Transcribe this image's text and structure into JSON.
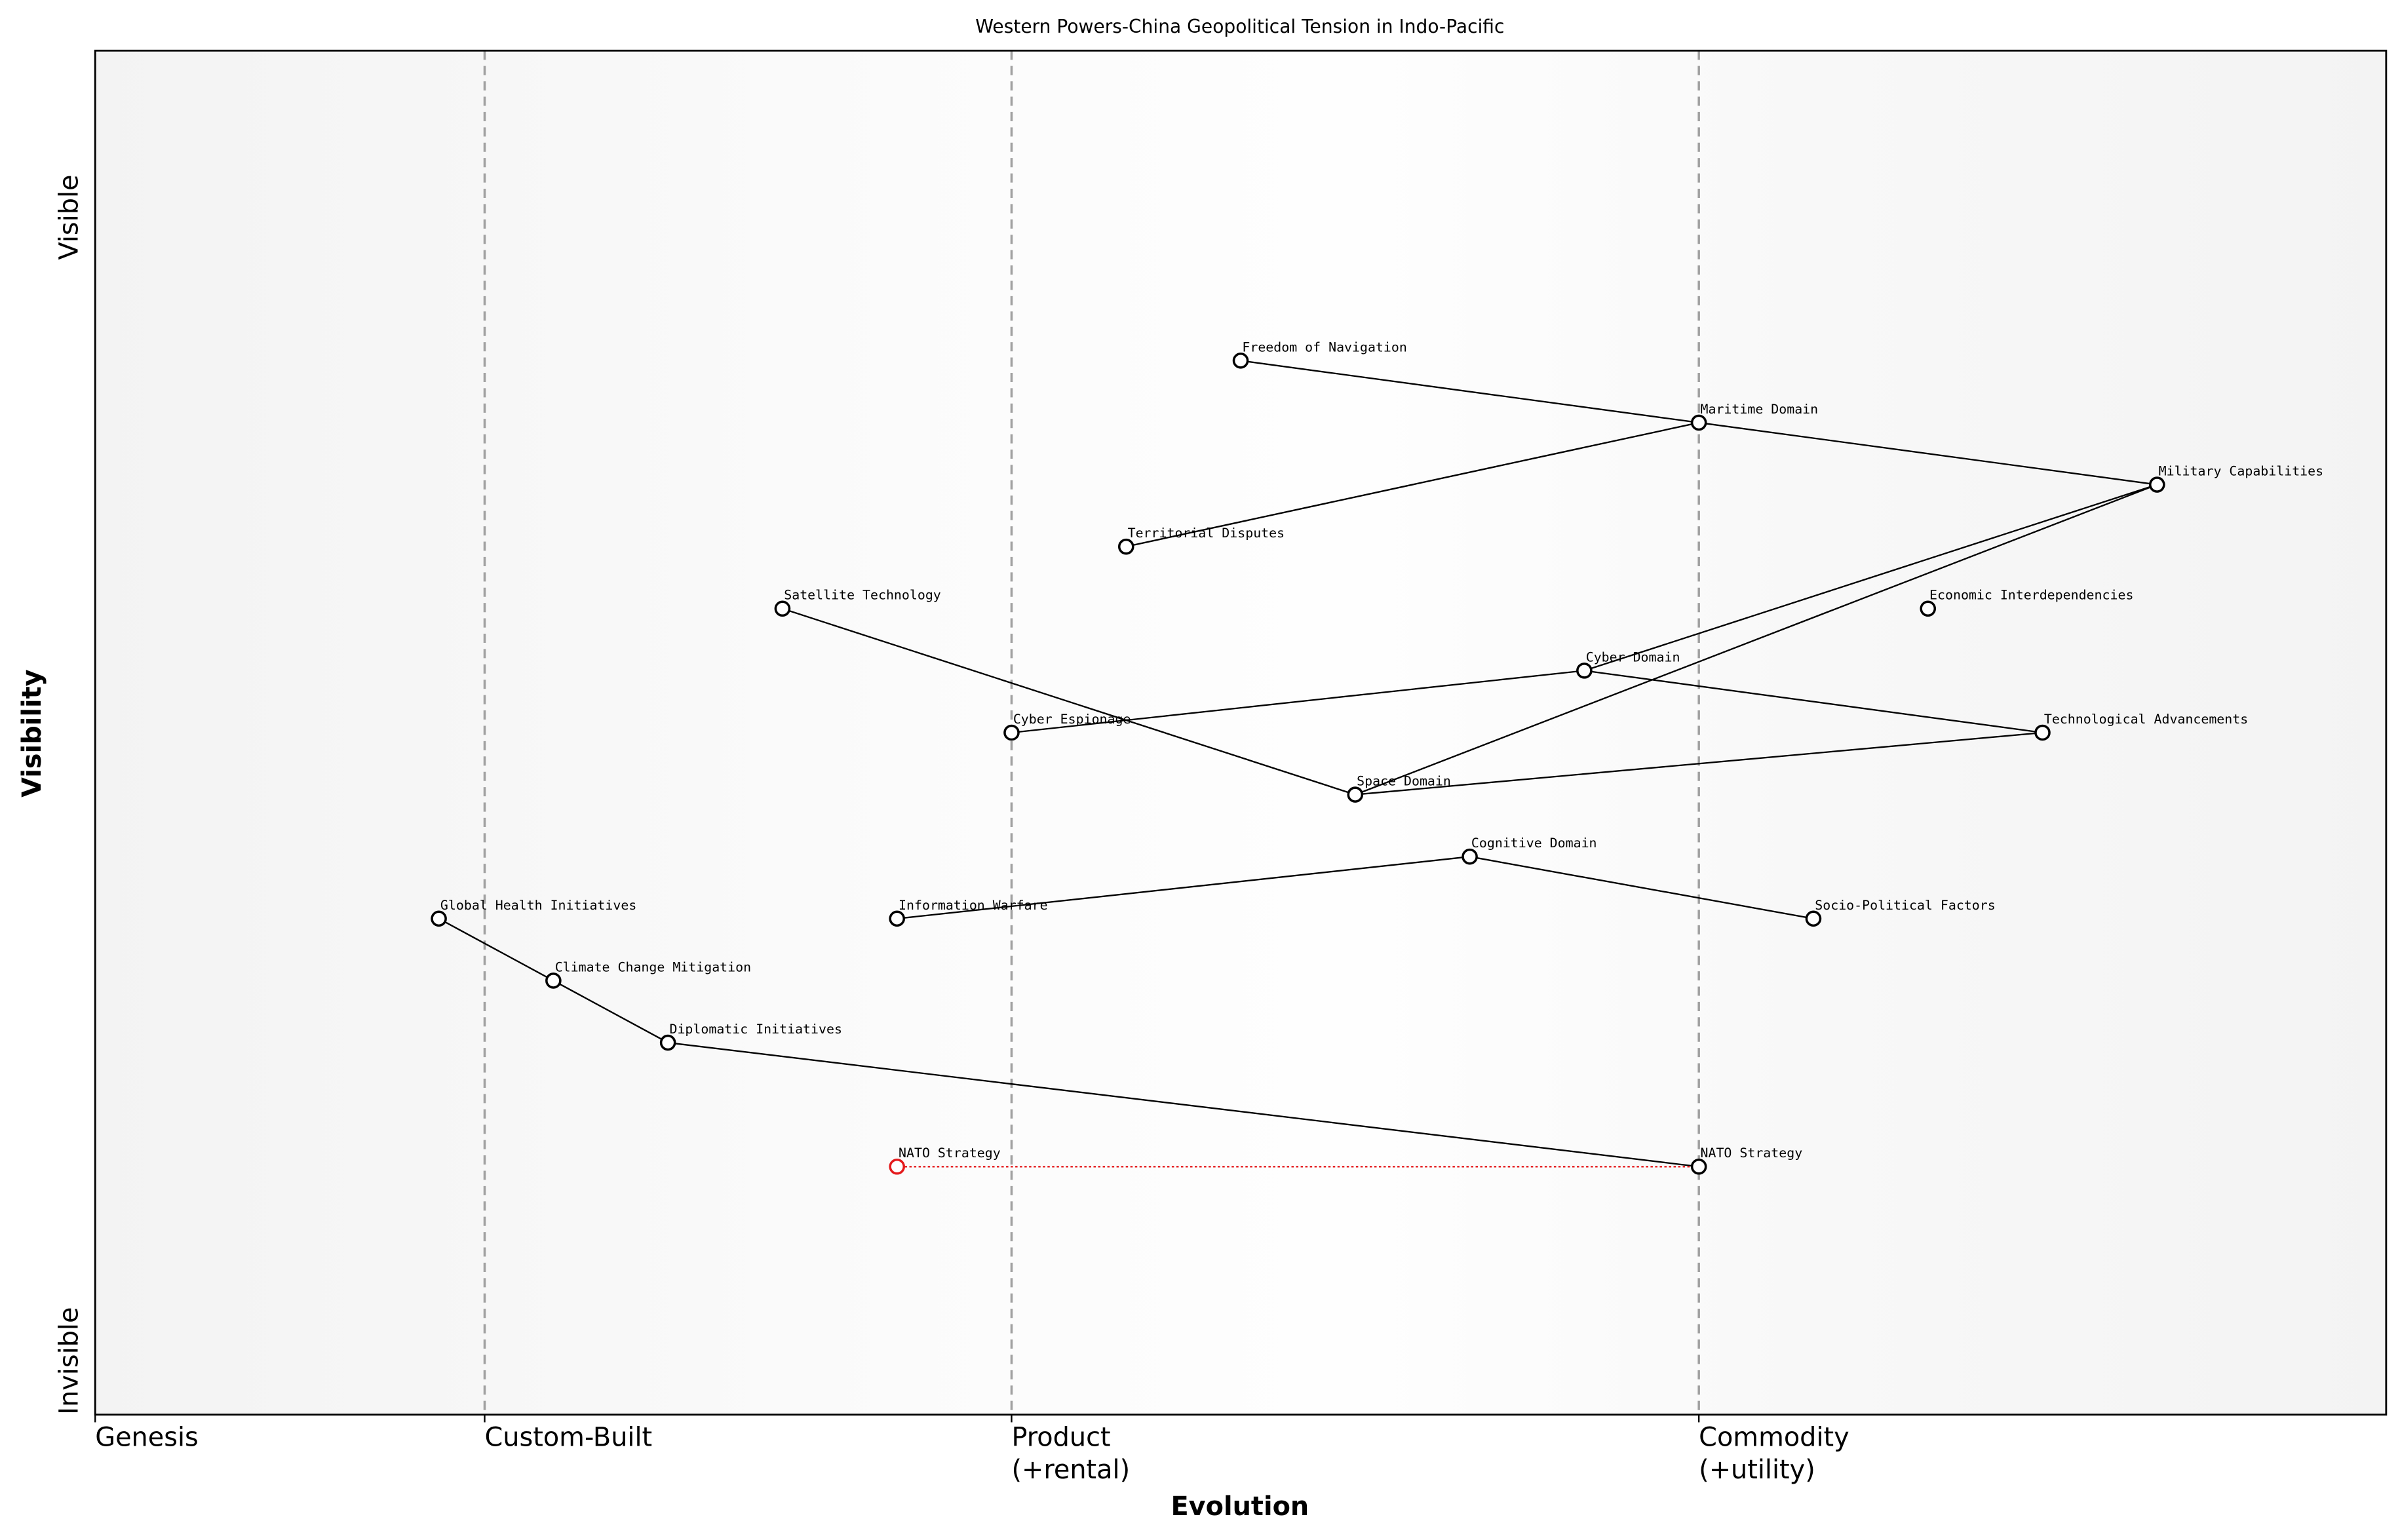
{
  "chart_data": {
    "type": "wardley",
    "title": "Western Powers-China Geopolitical Tension in Indo-Pacific",
    "xlabel": "Evolution",
    "ylabel": "Visibility",
    "xlim": [
      0,
      1
    ],
    "ylim": [
      0,
      1.1
    ],
    "xticks": [
      {
        "value": 0,
        "label": [
          "Genesis"
        ]
      },
      {
        "value": 0.17,
        "label": [
          "Custom-Built"
        ]
      },
      {
        "value": 0.4,
        "label": [
          "Product",
          "(+rental)"
        ]
      },
      {
        "value": 0.7,
        "label": [
          "Commodity",
          "(+utility)"
        ]
      }
    ],
    "yticks": [
      {
        "value": 0,
        "label": "Invisible"
      },
      {
        "value": 1,
        "label": "Visible"
      }
    ],
    "stage_lines": true,
    "node_color": "#000000",
    "link_color": "#000000",
    "nodes": [
      {
        "name": "Freedom of Navigation",
        "x": 0.5,
        "y": 0.85
      },
      {
        "name": "Maritime Domain",
        "x": 0.7,
        "y": 0.8
      },
      {
        "name": "Military Capabilities",
        "x": 0.9,
        "y": 0.75
      },
      {
        "name": "Territorial Disputes",
        "x": 0.45,
        "y": 0.7
      },
      {
        "name": "Satellite Technology",
        "x": 0.3,
        "y": 0.65
      },
      {
        "name": "Economic Interdependencies",
        "x": 0.8,
        "y": 0.65
      },
      {
        "name": "Cyber Domain",
        "x": 0.65,
        "y": 0.6
      },
      {
        "name": "Cyber Espionage",
        "x": 0.4,
        "y": 0.55
      },
      {
        "name": "Technological Advancements",
        "x": 0.85,
        "y": 0.55
      },
      {
        "name": "Space Domain",
        "x": 0.55,
        "y": 0.5
      },
      {
        "name": "Cognitive Domain",
        "x": 0.6,
        "y": 0.45
      },
      {
        "name": "Global Health Initiatives",
        "x": 0.15,
        "y": 0.4
      },
      {
        "name": "Information Warfare",
        "x": 0.35,
        "y": 0.4
      },
      {
        "name": "Socio-Political Factors",
        "x": 0.75,
        "y": 0.4
      },
      {
        "name": "Climate Change Mitigation",
        "x": 0.2,
        "y": 0.35
      },
      {
        "name": "Diplomatic Initiatives",
        "x": 0.25,
        "y": 0.3
      },
      {
        "name": "NATO Strategy",
        "x": 0.7,
        "y": 0.2
      }
    ],
    "links": [
      [
        "Freedom of Navigation",
        "Maritime Domain"
      ],
      [
        "Maritime Domain",
        "Military Capabilities"
      ],
      [
        "Territorial Disputes",
        "Maritime Domain"
      ],
      [
        "Military Capabilities",
        "Cyber Domain"
      ],
      [
        "Military Capabilities",
        "Space Domain"
      ],
      [
        "Satellite Technology",
        "Space Domain"
      ],
      [
        "Cyber Espionage",
        "Cyber Domain"
      ],
      [
        "Cyber Domain",
        "Technological Advancements"
      ],
      [
        "Space Domain",
        "Technological Advancements"
      ],
      [
        "Information Warfare",
        "Cognitive Domain"
      ],
      [
        "Cognitive Domain",
        "Socio-Political Factors"
      ],
      [
        "Global Health Initiatives",
        "Climate Change Mitigation"
      ],
      [
        "Climate Change Mitigation",
        "Diplomatic Initiatives"
      ],
      [
        "Diplomatic Initiatives",
        "NATO Strategy"
      ]
    ],
    "evolve": [
      {
        "name": "NATO Strategy",
        "x": 0.35,
        "y": 0.2,
        "color": "#e41a1c"
      }
    ]
  }
}
